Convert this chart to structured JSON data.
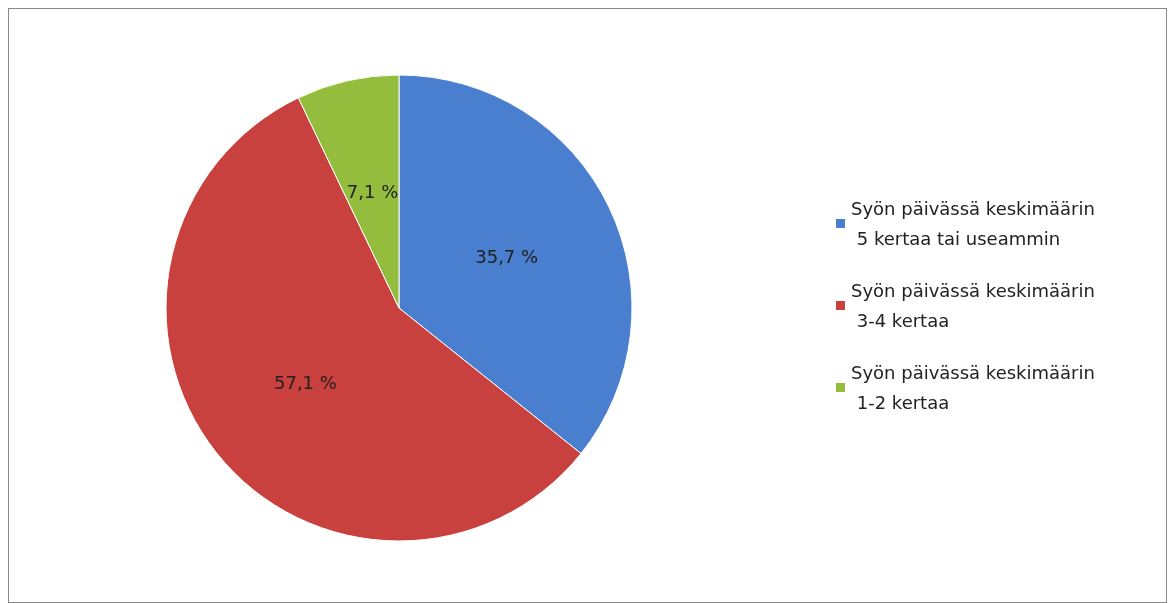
{
  "chart_data": {
    "type": "pie",
    "categories": [
      "Syön päivässä keskimäärin 5 kertaa tai useammin",
      "Syön päivässä keskimäärin 3-4 kertaa",
      "Syön päivässä keskimäärin 1-2 kertaa"
    ],
    "values": [
      35.7,
      57.1,
      7.1
    ],
    "colors": [
      "#4a7fcf",
      "#c9413e",
      "#94bc3d"
    ],
    "value_labels": [
      "35,7 %",
      "57,1 %",
      "7,1 %"
    ],
    "legend": "right"
  }
}
